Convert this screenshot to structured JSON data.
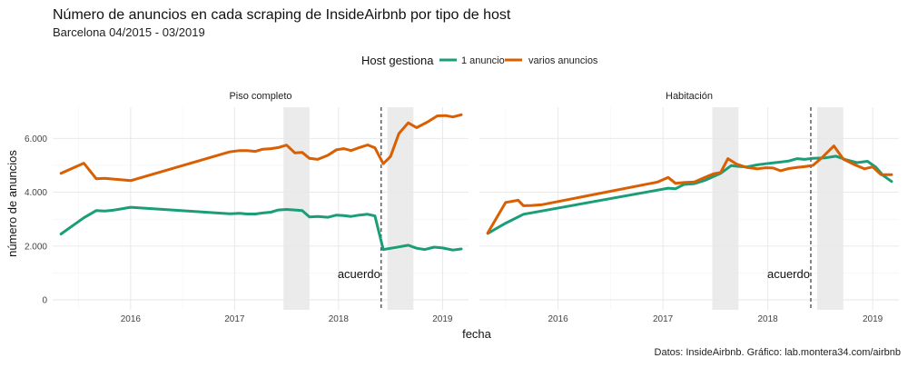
{
  "chart_data": {
    "type": "line",
    "title": "Número de anuncios en cada scraping de InsideAirbnb por tipo de host",
    "subtitle": "Barcelona 04/2015 - 03/2019",
    "xlabel": "fecha",
    "ylabel": "número de anuncios",
    "caption": "Datos: InsideAirbnb. Gráfico: lab.montera34.com/airbnb",
    "legend": {
      "title": "Host gestiona",
      "placement": "top",
      "entries": [
        {
          "label": "1 anuncio",
          "color": "#1b9e77"
        },
        {
          "label": "varios anuncios",
          "color": "#d95f02"
        }
      ]
    },
    "x_ticks": [
      "2016",
      "2017",
      "2018",
      "2019"
    ],
    "x_tick_values": [
      2016.0,
      2017.0,
      2018.0,
      2019.0
    ],
    "y_ticks": [
      "0",
      "2.000",
      "4.000",
      "6.000"
    ],
    "y_tick_values": [
      0,
      2000,
      4000,
      6000
    ],
    "xlim": [
      2015.25,
      2019.25
    ],
    "ylim": [
      0,
      7000
    ],
    "grid": true,
    "shaded_periods": [
      [
        2017.47,
        2017.72
      ],
      [
        2018.47,
        2018.72
      ]
    ],
    "vline": {
      "x": 2018.41,
      "label": "acuerdo"
    },
    "panels": [
      {
        "name": "Piso completo",
        "series": [
          {
            "name": "1 anuncio",
            "color": "#1b9e77",
            "points": [
              [
                2015.33,
                2450
              ],
              [
                2015.55,
                3050
              ],
              [
                2015.67,
                3320
              ],
              [
                2015.75,
                3300
              ],
              [
                2015.83,
                3330
              ],
              [
                2016.0,
                3440
              ],
              [
                2016.95,
                3200
              ],
              [
                2017.05,
                3220
              ],
              [
                2017.12,
                3190
              ],
              [
                2017.2,
                3190
              ],
              [
                2017.27,
                3230
              ],
              [
                2017.35,
                3260
              ],
              [
                2017.42,
                3340
              ],
              [
                2017.5,
                3360
              ],
              [
                2017.58,
                3340
              ],
              [
                2017.65,
                3320
              ],
              [
                2017.72,
                3080
              ],
              [
                2017.8,
                3100
              ],
              [
                2017.9,
                3070
              ],
              [
                2017.98,
                3150
              ],
              [
                2018.05,
                3130
              ],
              [
                2018.12,
                3100
              ],
              [
                2018.2,
                3150
              ],
              [
                2018.28,
                3180
              ],
              [
                2018.35,
                3120
              ],
              [
                2018.43,
                1870
              ],
              [
                2018.55,
                1950
              ],
              [
                2018.67,
                2030
              ],
              [
                2018.75,
                1920
              ],
              [
                2018.83,
                1870
              ],
              [
                2018.92,
                1960
              ],
              [
                2019.0,
                1930
              ],
              [
                2019.1,
                1850
              ],
              [
                2019.18,
                1890
              ]
            ]
          },
          {
            "name": "varios anuncios",
            "color": "#d95f02",
            "points": [
              [
                2015.33,
                4700
              ],
              [
                2015.55,
                5080
              ],
              [
                2015.67,
                4500
              ],
              [
                2015.75,
                4520
              ],
              [
                2016.0,
                4430
              ],
              [
                2016.95,
                5500
              ],
              [
                2017.05,
                5550
              ],
              [
                2017.12,
                5550
              ],
              [
                2017.2,
                5520
              ],
              [
                2017.27,
                5600
              ],
              [
                2017.35,
                5620
              ],
              [
                2017.42,
                5660
              ],
              [
                2017.5,
                5750
              ],
              [
                2017.58,
                5460
              ],
              [
                2017.65,
                5480
              ],
              [
                2017.72,
                5260
              ],
              [
                2017.8,
                5220
              ],
              [
                2017.9,
                5380
              ],
              [
                2017.98,
                5580
              ],
              [
                2018.05,
                5620
              ],
              [
                2018.12,
                5550
              ],
              [
                2018.2,
                5660
              ],
              [
                2018.28,
                5760
              ],
              [
                2018.35,
                5650
              ],
              [
                2018.43,
                5060
              ],
              [
                2018.5,
                5330
              ],
              [
                2018.58,
                6180
              ],
              [
                2018.67,
                6580
              ],
              [
                2018.75,
                6400
              ],
              [
                2018.85,
                6600
              ],
              [
                2018.95,
                6840
              ],
              [
                2019.03,
                6850
              ],
              [
                2019.1,
                6800
              ],
              [
                2019.18,
                6880
              ]
            ]
          }
        ]
      },
      {
        "name": "Habitación",
        "series": [
          {
            "name": "1 anuncio",
            "color": "#1b9e77",
            "points": [
              [
                2015.33,
                2470
              ],
              [
                2015.5,
                2850
              ],
              [
                2015.67,
                3180
              ],
              [
                2016.95,
                4080
              ],
              [
                2017.05,
                4150
              ],
              [
                2017.12,
                4130
              ],
              [
                2017.2,
                4290
              ],
              [
                2017.3,
                4320
              ],
              [
                2017.4,
                4440
              ],
              [
                2017.55,
                4700
              ],
              [
                2017.65,
                4990
              ],
              [
                2017.72,
                4960
              ],
              [
                2017.8,
                4940
              ],
              [
                2017.9,
                5020
              ],
              [
                2017.98,
                5060
              ],
              [
                2018.05,
                5090
              ],
              [
                2018.12,
                5120
              ],
              [
                2018.2,
                5160
              ],
              [
                2018.28,
                5250
              ],
              [
                2018.35,
                5220
              ],
              [
                2018.43,
                5260
              ],
              [
                2018.55,
                5280
              ],
              [
                2018.65,
                5340
              ],
              [
                2018.75,
                5200
              ],
              [
                2018.85,
                5100
              ],
              [
                2018.95,
                5150
              ],
              [
                2019.03,
                4930
              ],
              [
                2019.1,
                4620
              ],
              [
                2019.18,
                4400
              ]
            ]
          },
          {
            "name": "varios anuncios",
            "color": "#d95f02",
            "points": [
              [
                2015.33,
                2490
              ],
              [
                2015.5,
                3620
              ],
              [
                2015.62,
                3700
              ],
              [
                2015.67,
                3500
              ],
              [
                2015.75,
                3510
              ],
              [
                2015.85,
                3540
              ],
              [
                2016.95,
                4380
              ],
              [
                2017.05,
                4550
              ],
              [
                2017.12,
                4330
              ],
              [
                2017.2,
                4360
              ],
              [
                2017.3,
                4380
              ],
              [
                2017.4,
                4550
              ],
              [
                2017.48,
                4680
              ],
              [
                2017.55,
                4730
              ],
              [
                2017.62,
                5250
              ],
              [
                2017.7,
                5050
              ],
              [
                2017.8,
                4920
              ],
              [
                2017.9,
                4870
              ],
              [
                2017.98,
                4910
              ],
              [
                2018.05,
                4900
              ],
              [
                2018.12,
                4800
              ],
              [
                2018.2,
                4880
              ],
              [
                2018.28,
                4920
              ],
              [
                2018.35,
                4950
              ],
              [
                2018.43,
                5000
              ],
              [
                2018.52,
                5300
              ],
              [
                2018.63,
                5720
              ],
              [
                2018.72,
                5230
              ],
              [
                2018.83,
                5020
              ],
              [
                2018.92,
                4870
              ],
              [
                2019.0,
                4940
              ],
              [
                2019.08,
                4650
              ],
              [
                2019.18,
                4650
              ]
            ]
          }
        ]
      }
    ]
  }
}
